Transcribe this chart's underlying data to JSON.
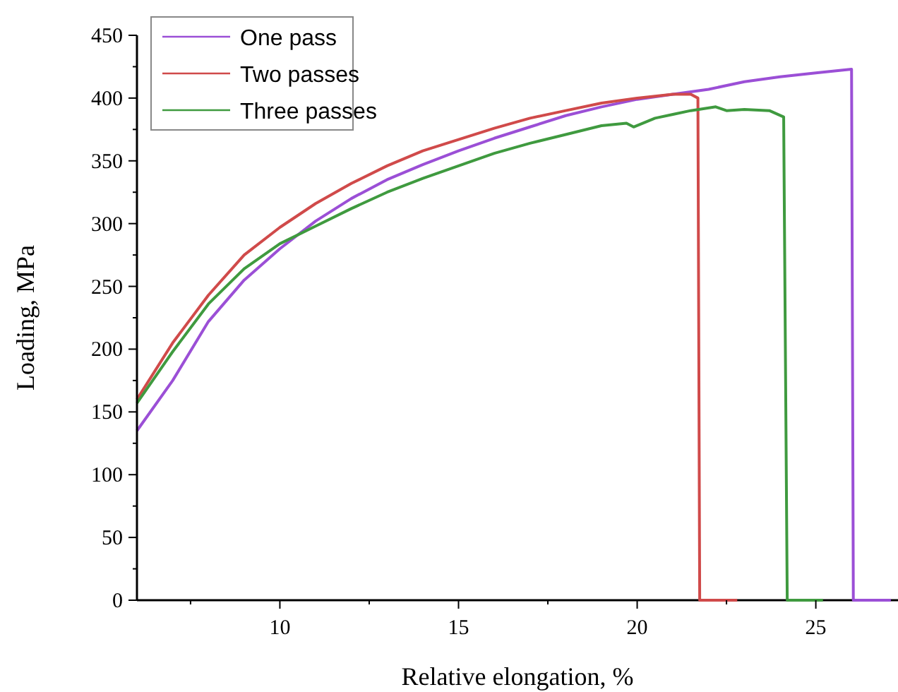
{
  "chart_data": {
    "type": "line",
    "xlabel": "Relative elongation, %",
    "ylabel": "Loading, MPa",
    "xlim": [
      6,
      27.3
    ],
    "ylim": [
      0,
      450
    ],
    "xticks": [
      {
        "value": 7.5,
        "label": null
      },
      10,
      {
        "value": 12.5,
        "label": null
      },
      15,
      {
        "value": 17.5,
        "label": null
      },
      20,
      {
        "value": 22.5,
        "label": null
      },
      25
    ],
    "yticks": [
      0,
      {
        "value": 25,
        "label": null
      },
      50,
      {
        "value": 75,
        "label": null
      },
      100,
      {
        "value": 125,
        "label": null
      },
      150,
      {
        "value": 175,
        "label": null
      },
      200,
      {
        "value": 225,
        "label": null
      },
      250,
      {
        "value": 275,
        "label": null
      },
      300,
      {
        "value": 325,
        "label": null
      },
      350,
      {
        "value": 375,
        "label": null
      },
      400,
      {
        "value": 425,
        "label": null
      },
      450
    ],
    "grid": false,
    "legend": "top left",
    "marker": "none",
    "line_style": "solid",
    "series": [
      {
        "name": "One pass",
        "color": "#9b4fd6",
        "x": [
          6,
          7,
          8,
          9,
          10,
          11,
          12,
          13,
          14,
          15,
          16,
          17,
          18,
          19,
          20,
          21,
          22,
          23,
          24,
          25,
          26,
          26.05,
          27.1
        ],
        "values": [
          135,
          175,
          222,
          255,
          280,
          302,
          320,
          335,
          347,
          358,
          368,
          377,
          386,
          393,
          399,
          403,
          407,
          413,
          417,
          420,
          423,
          0,
          0
        ]
      },
      {
        "name": "Two passes",
        "color": "#d04a4a",
        "x": [
          6,
          7,
          8,
          9,
          10,
          11,
          12,
          13,
          14,
          15,
          16,
          17,
          18,
          19,
          20,
          21,
          21.5,
          21.7,
          21.75,
          22.8
        ],
        "values": [
          160,
          205,
          243,
          275,
          297,
          316,
          332,
          346,
          358,
          367,
          376,
          384,
          390,
          396,
          400,
          403,
          403,
          400,
          0,
          0
        ]
      },
      {
        "name": "Three passes",
        "color": "#3f9a3f",
        "x": [
          6,
          7,
          8,
          9,
          10,
          11,
          12,
          13,
          14,
          15,
          16,
          17,
          18,
          19,
          19.7,
          19.9,
          20.5,
          21,
          21.5,
          22.2,
          22.5,
          23,
          23.7,
          24.1,
          24.2,
          25.2
        ],
        "values": [
          157,
          198,
          236,
          264,
          284,
          298,
          312,
          325,
          336,
          346,
          356,
          364,
          371,
          378,
          380,
          377,
          384,
          387,
          390,
          393,
          390,
          391,
          390,
          385,
          0,
          0
        ]
      }
    ]
  }
}
